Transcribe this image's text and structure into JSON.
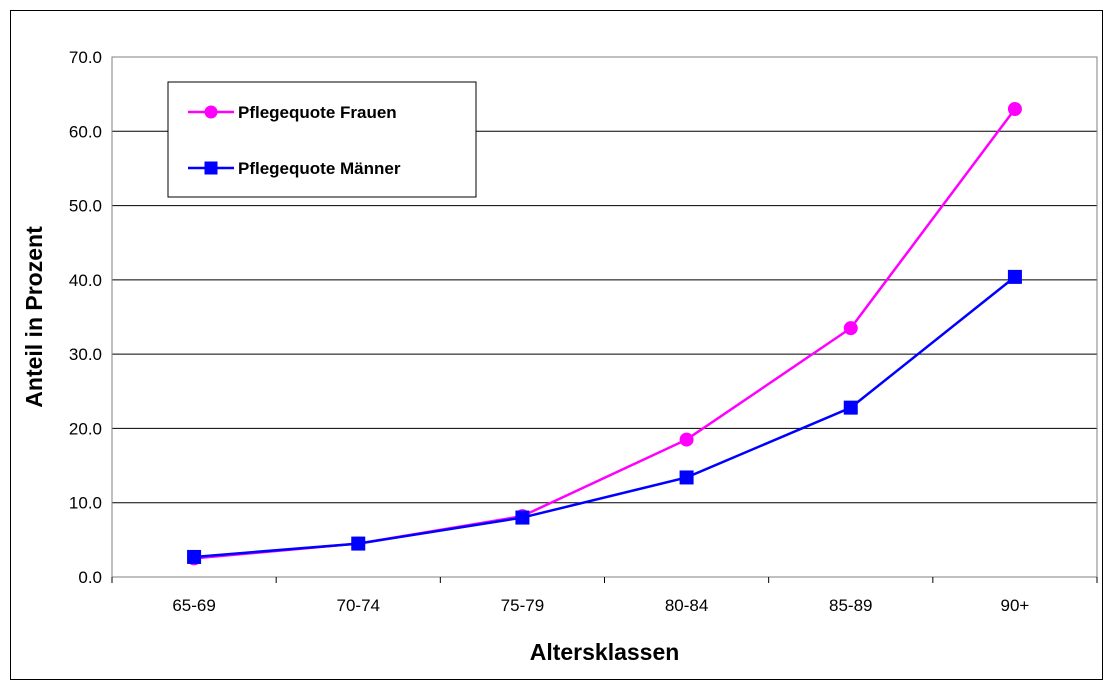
{
  "chart_data": {
    "type": "line",
    "categories": [
      "65-69",
      "70-74",
      "75-79",
      "80-84",
      "85-89",
      "90+"
    ],
    "series": [
      {
        "name": "Pflegequote Frauen",
        "values": [
          2.5,
          4.5,
          8.2,
          18.5,
          33.5,
          63.0
        ],
        "color": "#ff00ff",
        "marker": "circle"
      },
      {
        "name": "Pflegequote Männer",
        "values": [
          2.7,
          4.5,
          8.0,
          13.4,
          22.8,
          40.4
        ],
        "color": "#0000ff",
        "marker": "square"
      }
    ],
    "title": "",
    "xlabel": "Altersklassen",
    "ylabel": "Anteil in Prozent",
    "ylim": [
      0,
      70
    ],
    "yticks": [
      "0.0",
      "10.0",
      "20.0",
      "30.0",
      "40.0",
      "50.0",
      "60.0",
      "70.0"
    ],
    "grid": true,
    "legend_position": "top-left"
  }
}
